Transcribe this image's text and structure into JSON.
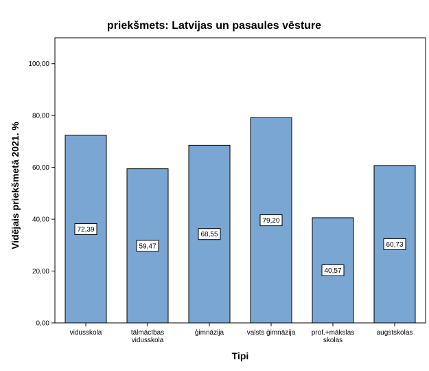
{
  "chart_data": {
    "type": "bar",
    "title": "priekšmets: Latvijas un pasaules vēsture",
    "xlabel": "Tipi",
    "ylabel": "Vidējais priekšmetā 2021. %",
    "categories": [
      [
        "vidusskola"
      ],
      [
        "tālmācības",
        "vidusskola"
      ],
      [
        "ģimnāzija"
      ],
      [
        "valsts ģimnāzija"
      ],
      [
        "prof.+mākslas",
        "skolas"
      ],
      [
        "augstskolas"
      ]
    ],
    "values": [
      72.39,
      59.47,
      68.55,
      79.2,
      40.57,
      60.73
    ],
    "data_labels": [
      "72,39",
      "59,47",
      "68,55",
      "79,20",
      "40,57",
      "60,73"
    ],
    "yticks": [
      "0,00",
      "20,00",
      "40,00",
      "60,00",
      "80,00",
      "100,00"
    ],
    "ytick_values": [
      0,
      20,
      40,
      60,
      80,
      100
    ],
    "ylim": [
      0,
      110
    ],
    "grid": false,
    "colors": {
      "bar_fill": "#7aa6d3",
      "bar_stroke": "#000000",
      "plot_bg": "#ffffff"
    }
  }
}
